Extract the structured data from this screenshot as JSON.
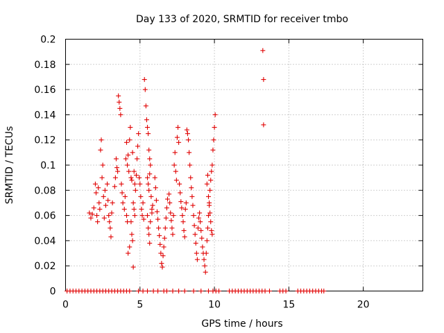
{
  "chart_data": {
    "type": "scatter",
    "title": "Day 133 of 2020, SRMTID for receiver tmbo",
    "xlabel": "GPS time / hours",
    "ylabel": "SRMTID / TECUs",
    "xlim": [
      0,
      24
    ],
    "ylim": [
      0,
      0.2
    ],
    "xticks": [
      0,
      5,
      10,
      15,
      20
    ],
    "xtick_labels": [
      "0",
      "5",
      "10",
      "15",
      "20"
    ],
    "yticks": [
      0,
      0.02,
      0.04,
      0.06,
      0.08,
      0.1,
      0.12,
      0.14,
      0.16,
      0.18,
      0.2
    ],
    "ytick_labels": [
      "0",
      "0.02",
      "0.04",
      "0.06",
      "0.08",
      "0.1",
      "0.12",
      "0.14",
      "0.16",
      "0.18",
      "0.2"
    ],
    "grid": true,
    "marker": "+",
    "color": "#e00000",
    "series": [
      {
        "name": "SRMTID",
        "points": [
          [
            1.6,
            0.062
          ],
          [
            1.7,
            0.058
          ],
          [
            1.8,
            0.061
          ],
          [
            1.9,
            0.066
          ],
          [
            2.0,
            0.085
          ],
          [
            2.05,
            0.078
          ],
          [
            2.1,
            0.06
          ],
          [
            2.15,
            0.055
          ],
          [
            2.2,
            0.082
          ],
          [
            2.25,
            0.07
          ],
          [
            2.3,
            0.065
          ],
          [
            2.35,
            0.112
          ],
          [
            2.4,
            0.12
          ],
          [
            2.45,
            0.09
          ],
          [
            2.5,
            0.1
          ],
          [
            2.55,
            0.075
          ],
          [
            2.6,
            0.058
          ],
          [
            2.65,
            0.08
          ],
          [
            2.7,
            0.068
          ],
          [
            2.8,
            0.085
          ],
          [
            2.85,
            0.072
          ],
          [
            2.9,
            0.06
          ],
          [
            2.95,
            0.055
          ],
          [
            3.0,
            0.05
          ],
          [
            3.05,
            0.043
          ],
          [
            3.1,
            0.062
          ],
          [
            3.15,
            0.07
          ],
          [
            3.3,
            0.083
          ],
          [
            3.35,
            0.09
          ],
          [
            3.4,
            0.105
          ],
          [
            3.45,
            0.098
          ],
          [
            3.5,
            0.095
          ],
          [
            3.55,
            0.155
          ],
          [
            3.6,
            0.15
          ],
          [
            3.65,
            0.145
          ],
          [
            3.7,
            0.14
          ],
          [
            3.75,
            0.085
          ],
          [
            3.8,
            0.078
          ],
          [
            3.85,
            0.07
          ],
          [
            3.95,
            0.065
          ],
          [
            4.0,
            0.075
          ],
          [
            4.05,
            0.105
          ],
          [
            4.1,
            0.118
          ],
          [
            4.15,
            0.1
          ],
          [
            4.2,
            0.108
          ],
          [
            4.25,
            0.095
          ],
          [
            4.3,
            0.12
          ],
          [
            4.35,
            0.13
          ],
          [
            4.4,
            0.09
          ],
          [
            4.45,
            0.088
          ],
          [
            4.5,
            0.11
          ],
          [
            4.55,
            0.07
          ],
          [
            4.6,
            0.065
          ],
          [
            4.65,
            0.06
          ],
          [
            4.5,
            0.04
          ],
          [
            4.55,
            0.019
          ],
          [
            4.2,
            0.03
          ],
          [
            4.3,
            0.035
          ],
          [
            4.4,
            0.055
          ],
          [
            4.45,
            0.045
          ],
          [
            4.1,
            0.06
          ],
          [
            4.15,
            0.055
          ],
          [
            4.6,
            0.095
          ],
          [
            4.65,
            0.085
          ],
          [
            4.7,
            0.08
          ],
          [
            4.75,
            0.092
          ],
          [
            4.8,
            0.105
          ],
          [
            4.85,
            0.115
          ],
          [
            4.9,
            0.125
          ],
          [
            4.95,
            0.09
          ],
          [
            5.0,
            0.085
          ],
          [
            5.05,
            0.075
          ],
          [
            5.1,
            0.065
          ],
          [
            5.15,
            0.06
          ],
          [
            5.2,
            0.07
          ],
          [
            5.25,
            0.057
          ],
          [
            5.3,
            0.168
          ],
          [
            5.35,
            0.16
          ],
          [
            5.4,
            0.147
          ],
          [
            5.45,
            0.136
          ],
          [
            5.5,
            0.13
          ],
          [
            5.55,
            0.125
          ],
          [
            5.6,
            0.112
          ],
          [
            5.65,
            0.105
          ],
          [
            5.7,
            0.1
          ],
          [
            5.5,
            0.09
          ],
          [
            5.55,
            0.085
          ],
          [
            5.6,
            0.08
          ],
          [
            5.65,
            0.093
          ],
          [
            5.75,
            0.075
          ],
          [
            5.8,
            0.065
          ],
          [
            5.5,
            0.06
          ],
          [
            5.55,
            0.05
          ],
          [
            5.6,
            0.045
          ],
          [
            5.65,
            0.038
          ],
          [
            5.7,
            0.055
          ],
          [
            5.8,
            0.062
          ],
          [
            5.85,
            0.068
          ],
          [
            6.0,
            0.09
          ],
          [
            6.05,
            0.082
          ],
          [
            6.1,
            0.072
          ],
          [
            6.15,
            0.063
          ],
          [
            6.2,
            0.057
          ],
          [
            6.25,
            0.05
          ],
          [
            6.3,
            0.044
          ],
          [
            6.35,
            0.037
          ],
          [
            6.4,
            0.03
          ],
          [
            6.45,
            0.022
          ],
          [
            6.5,
            0.019
          ],
          [
            6.55,
            0.028
          ],
          [
            6.6,
            0.035
          ],
          [
            6.65,
            0.042
          ],
          [
            6.7,
            0.05
          ],
          [
            6.75,
            0.058
          ],
          [
            6.8,
            0.066
          ],
          [
            6.85,
            0.073
          ],
          [
            6.95,
            0.077
          ],
          [
            7.0,
            0.07
          ],
          [
            7.05,
            0.062
          ],
          [
            7.1,
            0.056
          ],
          [
            7.15,
            0.05
          ],
          [
            7.2,
            0.045
          ],
          [
            7.25,
            0.06
          ],
          [
            7.3,
            0.1
          ],
          [
            7.35,
            0.11
          ],
          [
            7.4,
            0.095
          ],
          [
            7.45,
            0.088
          ],
          [
            7.5,
            0.122
          ],
          [
            7.55,
            0.13
          ],
          [
            7.6,
            0.118
          ],
          [
            7.65,
            0.085
          ],
          [
            7.7,
            0.078
          ],
          [
            7.75,
            0.071
          ],
          [
            7.8,
            0.066
          ],
          [
            7.85,
            0.06
          ],
          [
            7.9,
            0.055
          ],
          [
            7.95,
            0.048
          ],
          [
            8.0,
            0.043
          ],
          [
            8.05,
            0.065
          ],
          [
            8.1,
            0.07
          ],
          [
            8.15,
            0.128
          ],
          [
            8.2,
            0.125
          ],
          [
            8.25,
            0.12
          ],
          [
            8.3,
            0.11
          ],
          [
            8.35,
            0.1
          ],
          [
            8.4,
            0.09
          ],
          [
            8.45,
            0.082
          ],
          [
            8.5,
            0.075
          ],
          [
            8.55,
            0.068
          ],
          [
            8.6,
            0.06
          ],
          [
            8.65,
            0.052
          ],
          [
            8.7,
            0.045
          ],
          [
            8.75,
            0.038
          ],
          [
            8.8,
            0.03
          ],
          [
            8.85,
            0.025
          ],
          [
            8.9,
            0.05
          ],
          [
            8.95,
            0.058
          ],
          [
            9.0,
            0.062
          ],
          [
            9.05,
            0.055
          ],
          [
            9.1,
            0.048
          ],
          [
            9.15,
            0.042
          ],
          [
            9.2,
            0.035
          ],
          [
            9.25,
            0.03
          ],
          [
            9.3,
            0.025
          ],
          [
            9.35,
            0.02
          ],
          [
            9.4,
            0.015
          ],
          [
            9.45,
            0.03
          ],
          [
            9.5,
            0.04
          ],
          [
            9.55,
            0.05
          ],
          [
            9.6,
            0.06
          ],
          [
            9.65,
            0.07
          ],
          [
            9.7,
            0.08
          ],
          [
            9.75,
            0.088
          ],
          [
            9.8,
            0.095
          ],
          [
            9.85,
            0.1
          ],
          [
            9.9,
            0.112
          ],
          [
            9.95,
            0.12
          ],
          [
            10.0,
            0.13
          ],
          [
            10.05,
            0.14
          ],
          [
            9.6,
            0.075
          ],
          [
            9.65,
            0.068
          ],
          [
            9.7,
            0.062
          ],
          [
            9.75,
            0.055
          ],
          [
            9.8,
            0.048
          ],
          [
            9.85,
            0.045
          ],
          [
            9.5,
            0.085
          ],
          [
            9.55,
            0.092
          ],
          [
            13.25,
            0.191
          ],
          [
            13.3,
            0.168
          ],
          [
            13.3,
            0.132
          ],
          [
            0.1,
            0
          ],
          [
            0.3,
            0
          ],
          [
            0.5,
            0
          ],
          [
            0.7,
            0
          ],
          [
            0.9,
            0
          ],
          [
            1.1,
            0
          ],
          [
            1.3,
            0
          ],
          [
            1.5,
            0
          ],
          [
            1.7,
            0
          ],
          [
            1.9,
            0
          ],
          [
            2.1,
            0
          ],
          [
            2.3,
            0
          ],
          [
            2.5,
            0
          ],
          [
            2.7,
            0
          ],
          [
            2.9,
            0
          ],
          [
            3.1,
            0
          ],
          [
            3.3,
            0
          ],
          [
            3.5,
            0
          ],
          [
            3.7,
            0
          ],
          [
            3.9,
            0
          ],
          [
            4.1,
            0
          ],
          [
            4.3,
            0
          ],
          [
            4.9,
            0
          ],
          [
            5.2,
            0
          ],
          [
            5.5,
            0
          ],
          [
            5.9,
            0
          ],
          [
            6.2,
            0
          ],
          [
            6.6,
            0
          ],
          [
            6.8,
            0
          ],
          [
            7.2,
            0
          ],
          [
            7.6,
            0
          ],
          [
            8.0,
            0
          ],
          [
            8.6,
            0
          ],
          [
            9.1,
            0
          ],
          [
            9.6,
            0
          ],
          [
            9.9,
            0
          ],
          [
            10.1,
            0
          ],
          [
            10.3,
            0
          ],
          [
            11.0,
            0
          ],
          [
            11.2,
            0
          ],
          [
            11.4,
            0
          ],
          [
            11.6,
            0
          ],
          [
            11.8,
            0
          ],
          [
            12.0,
            0
          ],
          [
            12.2,
            0
          ],
          [
            12.4,
            0
          ],
          [
            12.6,
            0
          ],
          [
            12.8,
            0
          ],
          [
            13.0,
            0
          ],
          [
            13.2,
            0
          ],
          [
            13.4,
            0
          ],
          [
            13.7,
            0
          ],
          [
            14.4,
            0
          ],
          [
            14.6,
            0
          ],
          [
            14.8,
            0
          ],
          [
            15.6,
            0
          ],
          [
            15.8,
            0
          ],
          [
            16.0,
            0
          ],
          [
            16.2,
            0
          ],
          [
            16.4,
            0
          ],
          [
            16.6,
            0
          ],
          [
            16.8,
            0
          ],
          [
            17.0,
            0
          ],
          [
            17.2,
            0
          ],
          [
            17.35,
            0
          ]
        ]
      }
    ]
  }
}
